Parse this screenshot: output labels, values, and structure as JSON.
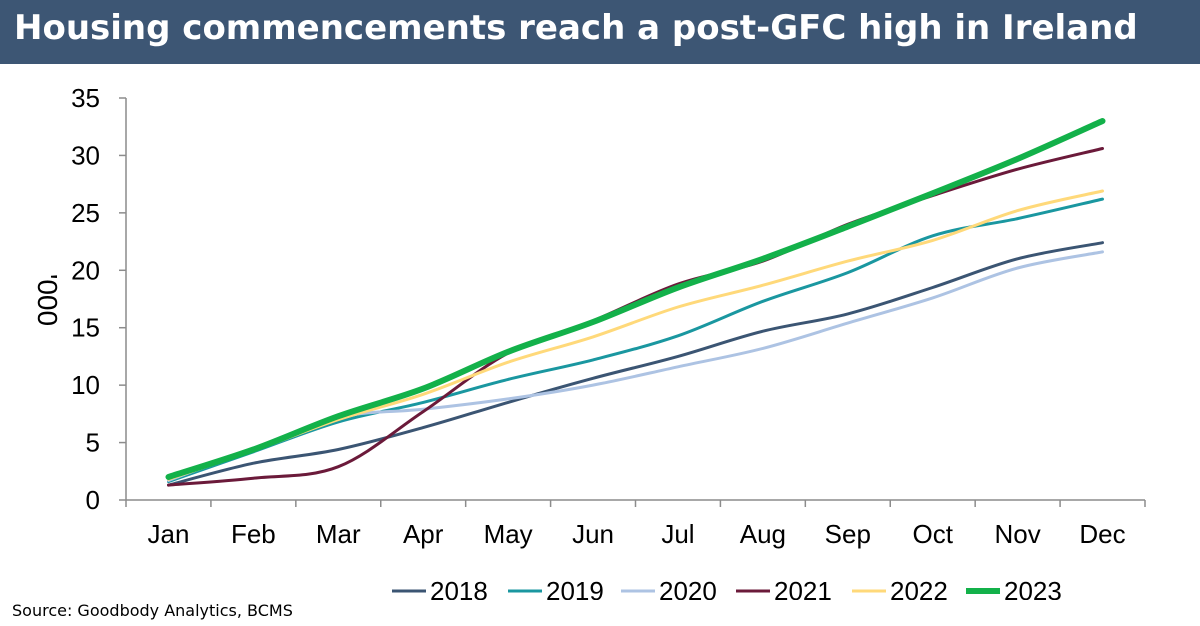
{
  "title": "Housing commencements reach a post-GFC high in Ireland",
  "source": "Source: Goodbody Analytics, BCMS",
  "chart_data": {
    "type": "line",
    "ylabel": "'000",
    "xlabel": "",
    "ylim": [
      0,
      35
    ],
    "yticks": [
      0,
      5,
      10,
      15,
      20,
      25,
      30,
      35
    ],
    "categories": [
      "Jan",
      "Feb",
      "Mar",
      "Apr",
      "May",
      "Jun",
      "Jul",
      "Aug",
      "Sep",
      "Oct",
      "Nov",
      "Dec"
    ],
    "legend_position": "bottom",
    "grid": false,
    "series": [
      {
        "name": "2018",
        "color": "#3b5573",
        "width": 3,
        "values": [
          1.3,
          3.2,
          4.4,
          6.3,
          8.5,
          10.6,
          12.5,
          14.7,
          16.2,
          18.5,
          21.0,
          22.4
        ]
      },
      {
        "name": "2019",
        "color": "#1a97a0",
        "width": 3,
        "values": [
          1.6,
          4.2,
          6.8,
          8.5,
          10.5,
          12.2,
          14.3,
          17.3,
          19.8,
          23.0,
          24.5,
          26.2
        ]
      },
      {
        "name": "2020",
        "color": "#adc3e3",
        "width": 3,
        "values": [
          1.7,
          4.5,
          7.2,
          7.9,
          8.8,
          10.0,
          11.6,
          13.2,
          15.4,
          17.6,
          20.2,
          21.6
        ]
      },
      {
        "name": "2021",
        "color": "#6b1a3a",
        "width": 3,
        "values": [
          1.3,
          1.9,
          2.9,
          7.7,
          12.8,
          15.6,
          18.8,
          20.8,
          24.0,
          26.5,
          28.8,
          30.6
        ]
      },
      {
        "name": "2022",
        "color": "#ffd97a",
        "width": 3,
        "values": [
          1.8,
          4.3,
          7.0,
          9.2,
          12.0,
          14.2,
          16.8,
          18.7,
          20.8,
          22.6,
          25.2,
          26.9
        ]
      },
      {
        "name": "2023",
        "color": "#13b14a",
        "width": 6,
        "values": [
          2.0,
          4.4,
          7.3,
          9.7,
          12.9,
          15.5,
          18.5,
          21.0,
          23.8,
          26.7,
          29.7,
          33.0
        ]
      }
    ]
  }
}
